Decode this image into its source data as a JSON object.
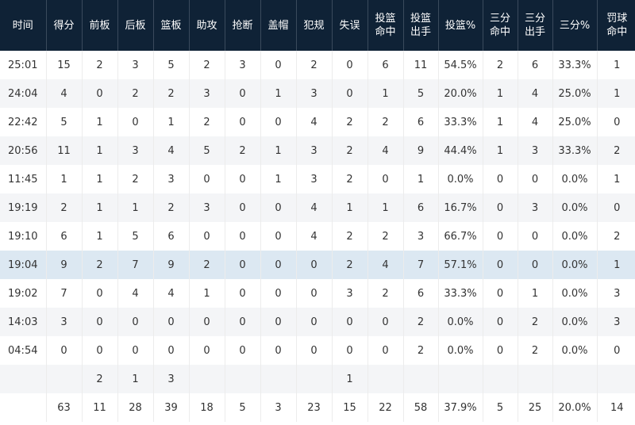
{
  "table": {
    "headers": [
      [
        "时间"
      ],
      [
        "得分"
      ],
      [
        "前板"
      ],
      [
        "后板"
      ],
      [
        "篮板"
      ],
      [
        "助攻"
      ],
      [
        "抢断"
      ],
      [
        "盖帽"
      ],
      [
        "犯规"
      ],
      [
        "失误"
      ],
      [
        "投篮",
        "命中"
      ],
      [
        "投篮",
        "出手"
      ],
      [
        "投篮%"
      ],
      [
        "三分",
        "命中"
      ],
      [
        "三分",
        "出手"
      ],
      [
        "三分%"
      ],
      [
        "罚球",
        "命中"
      ]
    ],
    "rows": [
      [
        "25:01",
        "15",
        "2",
        "3",
        "5",
        "2",
        "3",
        "0",
        "2",
        "0",
        "6",
        "11",
        "54.5%",
        "2",
        "6",
        "33.3%",
        "1"
      ],
      [
        "24:04",
        "4",
        "0",
        "2",
        "2",
        "3",
        "0",
        "1",
        "3",
        "0",
        "1",
        "5",
        "20.0%",
        "1",
        "4",
        "25.0%",
        "1"
      ],
      [
        "22:42",
        "5",
        "1",
        "0",
        "1",
        "2",
        "0",
        "0",
        "4",
        "2",
        "2",
        "6",
        "33.3%",
        "1",
        "4",
        "25.0%",
        "0"
      ],
      [
        "20:56",
        "11",
        "1",
        "3",
        "4",
        "5",
        "2",
        "1",
        "3",
        "2",
        "4",
        "9",
        "44.4%",
        "1",
        "3",
        "33.3%",
        "2"
      ],
      [
        "11:45",
        "1",
        "1",
        "2",
        "3",
        "0",
        "0",
        "1",
        "3",
        "2",
        "0",
        "1",
        "0.0%",
        "0",
        "0",
        "0.0%",
        "1"
      ],
      [
        "19:19",
        "2",
        "1",
        "1",
        "2",
        "3",
        "0",
        "0",
        "4",
        "1",
        "1",
        "6",
        "16.7%",
        "0",
        "3",
        "0.0%",
        "0"
      ],
      [
        "19:10",
        "6",
        "1",
        "5",
        "6",
        "0",
        "0",
        "0",
        "4",
        "2",
        "2",
        "3",
        "66.7%",
        "0",
        "0",
        "0.0%",
        "2"
      ],
      [
        "19:04",
        "9",
        "2",
        "7",
        "9",
        "2",
        "0",
        "0",
        "0",
        "2",
        "4",
        "7",
        "57.1%",
        "0",
        "0",
        "0.0%",
        "1"
      ],
      [
        "19:02",
        "7",
        "0",
        "4",
        "4",
        "1",
        "0",
        "0",
        "0",
        "3",
        "2",
        "6",
        "33.3%",
        "0",
        "1",
        "0.0%",
        "3"
      ],
      [
        "14:03",
        "3",
        "0",
        "0",
        "0",
        "0",
        "0",
        "0",
        "0",
        "0",
        "0",
        "2",
        "0.0%",
        "0",
        "2",
        "0.0%",
        "3"
      ],
      [
        "04:54",
        "0",
        "0",
        "0",
        "0",
        "0",
        "0",
        "0",
        "0",
        "0",
        "0",
        "2",
        "0.0%",
        "0",
        "2",
        "0.0%",
        "0"
      ],
      [
        "",
        "",
        "2",
        "1",
        "3",
        "",
        "",
        "",
        "",
        "1",
        "",
        "",
        "",
        "",
        "",
        "",
        ""
      ],
      [
        "",
        "63",
        "11",
        "28",
        "39",
        "18",
        "5",
        "3",
        "23",
        "15",
        "22",
        "58",
        "37.9%",
        "5",
        "25",
        "20.0%",
        "14"
      ]
    ],
    "highlight_row": 7,
    "colors": {
      "header_bg": "#0f2236",
      "header_text": "#ffffff",
      "stripe": "#f4f5f7",
      "highlight": "#dce8f2"
    }
  }
}
